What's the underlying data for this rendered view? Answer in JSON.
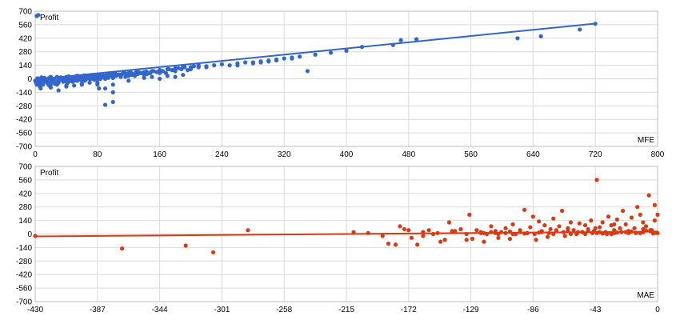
{
  "chart_data": [
    {
      "type": "scatter",
      "title": "",
      "ylabel": "Profit",
      "xlabel": "MFE",
      "xlim": [
        0,
        800
      ],
      "ylim": [
        -700,
        700
      ],
      "xticks": [
        0,
        80,
        160,
        240,
        320,
        400,
        480,
        560,
        640,
        720,
        800
      ],
      "yticks": [
        700,
        560,
        420,
        280,
        140,
        0,
        -140,
        -280,
        -420,
        -560,
        -700
      ],
      "grid": true,
      "colors": {
        "points": "#3366cc",
        "trend": "#3366cc"
      },
      "trendline": {
        "x": [
          0,
          720
        ],
        "y": [
          -8,
          572
        ]
      },
      "series": [
        {
          "x": [
            0,
            1,
            2,
            3,
            4,
            5,
            6,
            7,
            8,
            9,
            10,
            12,
            14,
            16,
            18,
            20,
            22,
            24,
            26,
            28,
            30,
            32,
            34,
            36,
            38,
            40,
            42,
            44,
            46,
            48,
            50,
            52,
            54,
            56,
            58,
            60,
            62,
            64,
            66,
            68,
            70,
            72,
            74,
            76,
            78,
            80,
            82,
            84,
            86,
            88,
            90,
            92,
            94,
            96,
            98,
            100,
            104,
            108,
            112,
            116,
            120,
            124,
            128,
            132,
            136,
            140,
            144,
            148,
            152,
            156,
            160,
            164,
            168,
            172,
            176,
            180,
            184,
            188,
            192,
            196,
            200,
            204,
            210,
            220,
            230,
            240,
            250,
            260,
            270,
            280,
            290,
            300,
            310,
            320,
            330,
            340,
            350,
            360,
            380,
            400,
            420,
            460,
            470,
            490,
            620,
            650,
            700,
            720,
            2,
            4,
            6,
            8,
            10,
            12,
            15,
            18,
            20,
            25,
            30,
            35,
            40,
            45,
            50,
            55,
            60,
            65,
            70,
            75,
            80,
            85,
            90,
            95,
            100,
            105,
            110,
            115,
            120,
            130,
            140,
            150,
            160,
            170,
            180,
            190,
            200,
            210,
            5,
            10,
            15,
            20,
            25,
            30,
            40,
            50,
            60,
            70,
            80,
            90,
            100,
            110,
            120,
            140,
            160,
            180,
            200,
            220,
            3,
            8,
            13,
            18,
            23,
            28,
            33,
            38,
            43,
            48,
            53,
            58,
            63,
            68,
            73,
            78,
            83,
            88,
            93,
            98,
            103,
            108,
            113,
            118,
            123,
            128,
            133,
            138,
            143,
            148,
            10,
            20,
            30,
            40,
            50,
            60,
            70,
            80,
            90,
            100,
            20,
            40,
            60,
            80,
            100,
            120,
            140,
            160,
            180,
            260,
            280,
            300,
            290,
            310,
            330,
            90,
            100,
            82,
            60,
            150,
            170,
            190
          ],
          "y": [
            -20,
            -40,
            -60,
            -30,
            -10,
            -50,
            -80,
            -100,
            -20,
            -60,
            -40,
            -10,
            -30,
            -50,
            -70,
            -20,
            -10,
            -30,
            -40,
            -60,
            -20,
            -10,
            0,
            -30,
            -20,
            -10,
            -40,
            0,
            -20,
            -30,
            -10,
            0,
            -20,
            10,
            -10,
            0,
            10,
            -20,
            0,
            10,
            20,
            0,
            10,
            -10,
            20,
            30,
            10,
            0,
            20,
            30,
            20,
            40,
            10,
            30,
            40,
            50,
            30,
            40,
            50,
            20,
            60,
            40,
            30,
            50,
            60,
            70,
            50,
            60,
            80,
            70,
            90,
            80,
            60,
            100,
            90,
            80,
            110,
            100,
            120,
            90,
            110,
            130,
            120,
            130,
            140,
            150,
            140,
            160,
            170,
            160,
            180,
            190,
            200,
            210,
            220,
            230,
            80,
            250,
            270,
            290,
            330,
            350,
            400,
            410,
            420,
            440,
            510,
            570,
            650,
            660,
            -10,
            0,
            -20,
            10,
            -30,
            0,
            20,
            -10,
            10,
            0,
            20,
            -20,
            10,
            30,
            0,
            20,
            10,
            40,
            0,
            30,
            20,
            50,
            10,
            40,
            30,
            60,
            50,
            70,
            60,
            80,
            90,
            100,
            110,
            130,
            120,
            140,
            -40,
            -30,
            -20,
            -60,
            -50,
            -40,
            -30,
            -20,
            -10,
            0,
            -10,
            0,
            10,
            20,
            30,
            40,
            60,
            80,
            100,
            120,
            5,
            15,
            0,
            10,
            -5,
            20,
            15,
            5,
            25,
            10,
            30,
            20,
            35,
            25,
            40,
            30,
            45,
            35,
            50,
            40,
            55,
            45,
            60,
            50,
            65,
            55,
            70,
            60,
            75,
            65,
            -60,
            -90,
            -120,
            -80,
            -70,
            -50,
            -40,
            -60,
            -100,
            -140,
            -30,
            -70,
            -50,
            -40,
            -60,
            -20,
            10,
            0,
            20,
            140,
            170,
            180,
            170,
            190,
            210,
            -270,
            -240,
            -100,
            -60,
            20,
            30,
            40
          ]
        }
      ]
    },
    {
      "type": "scatter",
      "title": "",
      "ylabel": "Profit",
      "xlabel": "MAE",
      "xlim": [
        -430,
        0
      ],
      "ylim": [
        -700,
        700
      ],
      "xticks": [
        -430,
        -387,
        -344,
        -301,
        -258,
        -215,
        -172,
        -129,
        -86,
        -43,
        0
      ],
      "yticks": [
        700,
        560,
        420,
        280,
        140,
        0,
        -140,
        -280,
        -420,
        -560,
        -700
      ],
      "grid": true,
      "colors": {
        "points": "#dc3912",
        "trend": "#dc3912"
      },
      "trendline": {
        "x": [
          -430,
          0
        ],
        "y": [
          -25,
          25
        ]
      },
      "series": [
        {
          "x": [
            -430,
            -370,
            -326,
            -307,
            -283,
            -210,
            -200,
            -190,
            -186,
            -181,
            -178,
            -175,
            -170,
            -166,
            -162,
            -158,
            -155,
            -150,
            -147,
            -144,
            -140,
            -136,
            -132,
            -130,
            -128,
            -125,
            -122,
            -120,
            -118,
            -115,
            -112,
            -110,
            -108,
            -105,
            -102,
            -100,
            -98,
            -95,
            -92,
            -90,
            -88,
            -86,
            -84,
            -82,
            -80,
            -78,
            -76,
            -74,
            -72,
            -70,
            -68,
            -66,
            -64,
            -62,
            -60,
            -58,
            -56,
            -54,
            -52,
            -50,
            -48,
            -46,
            -44,
            -42,
            -40,
            -38,
            -36,
            -34,
            -32,
            -30,
            -28,
            -26,
            -24,
            -22,
            -20,
            -18,
            -16,
            -14,
            -12,
            -10,
            -8,
            -6,
            -4,
            -2,
            0,
            -55,
            -43,
            -30,
            -20,
            -10,
            -5,
            -2,
            -60,
            -65,
            -70,
            -75,
            -80,
            -85,
            -90,
            -95,
            -100,
            -105,
            -110,
            -115,
            -120,
            -50,
            -45,
            -40,
            -35,
            -30,
            -25,
            -20,
            -15,
            -10,
            -5,
            0,
            -48,
            -38,
            -28,
            -18,
            -8,
            -3,
            -1,
            -12,
            -22,
            -32,
            -42,
            -52,
            -62,
            -72,
            -82,
            -92,
            -102,
            -112,
            -122,
            -132,
            -142,
            -152,
            -162,
            -172
          ],
          "y": [
            -20,
            -150,
            -120,
            -190,
            40,
            20,
            10,
            -20,
            -100,
            -110,
            80,
            50,
            -40,
            -110,
            -20,
            40,
            0,
            -80,
            -60,
            120,
            30,
            50,
            -60,
            200,
            -50,
            40,
            10,
            -80,
            0,
            80,
            30,
            -40,
            20,
            60,
            -50,
            100,
            0,
            40,
            250,
            10,
            70,
            180,
            -60,
            130,
            20,
            90,
            -30,
            50,
            160,
            30,
            80,
            240,
            -20,
            60,
            120,
            40,
            0,
            110,
            20,
            90,
            50,
            140,
            30,
            560,
            70,
            120,
            20,
            180,
            90,
            40,
            150,
            60,
            240,
            100,
            30,
            170,
            60,
            280,
            200,
            120,
            80,
            400,
            40,
            300,
            200,
            20,
            60,
            100,
            10,
            50,
            30,
            140,
            0,
            20,
            40,
            10,
            30,
            0,
            10,
            20,
            0,
            10,
            0,
            20,
            10,
            0,
            10,
            20,
            0,
            10,
            20,
            30,
            10,
            20,
            40,
            10,
            30,
            5,
            15,
            25,
            35,
            5,
            15,
            10,
            20,
            0,
            10,
            20,
            30,
            0,
            15,
            5,
            25,
            10,
            20,
            0,
            30,
            10,
            20,
            40
          ]
        }
      ]
    }
  ]
}
